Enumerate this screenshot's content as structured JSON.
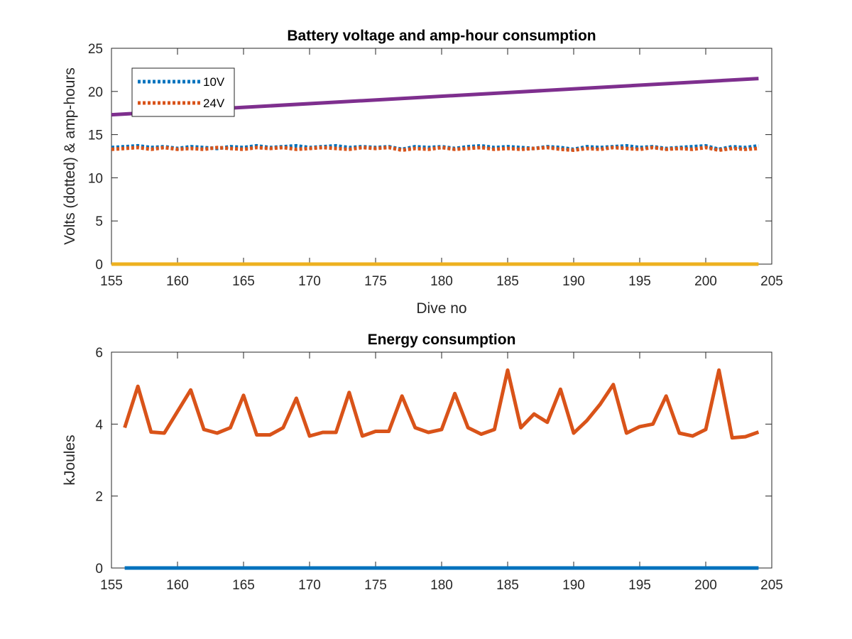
{
  "chart_data": [
    {
      "type": "line",
      "title": "Battery voltage and amp-hour consumption",
      "xlabel": "Dive no",
      "ylabel": "Volts (dotted) & amp-hours",
      "xlim": [
        155,
        205
      ],
      "ylim": [
        0,
        25
      ],
      "xticks": [
        155,
        160,
        165,
        170,
        175,
        180,
        185,
        190,
        195,
        200,
        205
      ],
      "yticks": [
        0,
        5,
        10,
        15,
        20,
        25
      ],
      "legend_position": "top-left",
      "series": [
        {
          "name": "10V",
          "style": "dotted",
          "color": "#0072BD",
          "in_legend": true,
          "x": [
            155,
            156,
            157,
            158,
            159,
            160,
            161,
            162,
            163,
            164,
            165,
            166,
            167,
            168,
            169,
            170,
            171,
            172,
            173,
            174,
            175,
            176,
            177,
            178,
            179,
            180,
            181,
            182,
            183,
            184,
            185,
            186,
            187,
            188,
            189,
            190,
            191,
            192,
            193,
            194,
            195,
            196,
            197,
            198,
            199,
            200,
            201,
            202,
            203,
            204
          ],
          "y": [
            13.5,
            13.6,
            13.7,
            13.5,
            13.6,
            13.4,
            13.6,
            13.5,
            13.4,
            13.6,
            13.5,
            13.7,
            13.5,
            13.6,
            13.7,
            13.5,
            13.6,
            13.7,
            13.5,
            13.6,
            13.5,
            13.6,
            13.3,
            13.6,
            13.5,
            13.6,
            13.4,
            13.6,
            13.7,
            13.5,
            13.6,
            13.5,
            13.4,
            13.6,
            13.5,
            13.3,
            13.6,
            13.5,
            13.6,
            13.7,
            13.5,
            13.6,
            13.4,
            13.5,
            13.6,
            13.7,
            13.3,
            13.6,
            13.5,
            13.7
          ]
        },
        {
          "name": "24V",
          "style": "dotted",
          "color": "#D95319",
          "in_legend": true,
          "x": [
            155,
            156,
            157,
            158,
            159,
            160,
            161,
            162,
            163,
            164,
            165,
            166,
            167,
            168,
            169,
            170,
            171,
            172,
            173,
            174,
            175,
            176,
            177,
            178,
            179,
            180,
            181,
            182,
            183,
            184,
            185,
            186,
            187,
            188,
            189,
            190,
            191,
            192,
            193,
            194,
            195,
            196,
            197,
            198,
            199,
            200,
            201,
            202,
            203,
            204
          ],
          "y": [
            13.3,
            13.4,
            13.5,
            13.3,
            13.5,
            13.3,
            13.4,
            13.3,
            13.5,
            13.4,
            13.3,
            13.5,
            13.4,
            13.5,
            13.3,
            13.4,
            13.5,
            13.4,
            13.3,
            13.5,
            13.4,
            13.5,
            13.2,
            13.4,
            13.3,
            13.5,
            13.3,
            13.4,
            13.5,
            13.3,
            13.4,
            13.3,
            13.4,
            13.5,
            13.3,
            13.2,
            13.4,
            13.3,
            13.5,
            13.4,
            13.3,
            13.5,
            13.3,
            13.4,
            13.3,
            13.5,
            13.2,
            13.4,
            13.3,
            13.4
          ]
        },
        {
          "style": "solid",
          "color": "#7E2F8E",
          "in_legend": false,
          "x": [
            155,
            204
          ],
          "y": [
            17.3,
            21.5
          ]
        },
        {
          "style": "solid",
          "color": "#EDB120",
          "in_legend": false,
          "x": [
            155,
            204
          ],
          "y": [
            0,
            0
          ]
        }
      ]
    },
    {
      "type": "line",
      "title": "Energy consumption",
      "xlabel": "",
      "ylabel": "kJoules",
      "xlim": [
        155,
        205
      ],
      "ylim": [
        0,
        6
      ],
      "xticks": [
        155,
        160,
        165,
        170,
        175,
        180,
        185,
        190,
        195,
        200,
        205
      ],
      "yticks": [
        0,
        2,
        4,
        6
      ],
      "series": [
        {
          "style": "solid",
          "color": "#D95319",
          "x": [
            156,
            157,
            158,
            159,
            160,
            161,
            162,
            163,
            164,
            165,
            166,
            167,
            168,
            169,
            170,
            171,
            172,
            173,
            174,
            175,
            176,
            177,
            178,
            179,
            180,
            181,
            182,
            183,
            184,
            185,
            186,
            187,
            188,
            189,
            190,
            191,
            192,
            193,
            194,
            195,
            196,
            197,
            198,
            199,
            200,
            201,
            202,
            203,
            204
          ],
          "y": [
            3.9,
            5.05,
            3.78,
            3.75,
            4.35,
            4.95,
            3.85,
            3.75,
            3.9,
            4.8,
            3.7,
            3.7,
            3.9,
            4.72,
            3.67,
            3.77,
            3.77,
            4.88,
            3.67,
            3.8,
            3.8,
            4.78,
            3.9,
            3.77,
            3.85,
            4.85,
            3.9,
            3.72,
            3.85,
            5.5,
            3.9,
            4.28,
            4.05,
            4.97,
            3.75,
            4.1,
            4.55,
            5.1,
            3.75,
            3.93,
            4.0,
            4.78,
            3.75,
            3.67,
            3.85,
            5.5,
            3.62,
            3.65,
            3.78
          ]
        },
        {
          "style": "solid",
          "color": "#0072BD",
          "x": [
            156,
            204
          ],
          "y": [
            0,
            0
          ]
        }
      ]
    }
  ]
}
